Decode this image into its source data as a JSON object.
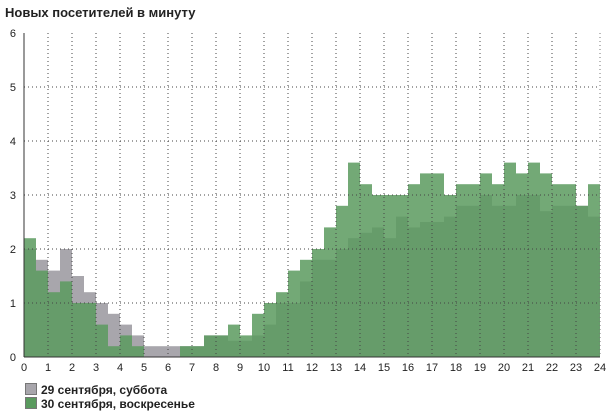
{
  "chart_data": {
    "type": "bar",
    "title": "Новых посетителей в минуту",
    "xlabel": "",
    "ylabel": "",
    "xlim": [
      0,
      24
    ],
    "ylim": [
      0,
      6
    ],
    "x_ticks": [
      "0",
      "1",
      "2",
      "3",
      "4",
      "5",
      "6",
      "7",
      "8",
      "9",
      "10",
      "11",
      "12",
      "13",
      "14",
      "15",
      "16",
      "17",
      "18",
      "19",
      "20",
      "21",
      "22",
      "23",
      "24"
    ],
    "y_ticks": [
      "0",
      "1",
      "2",
      "3",
      "4",
      "5",
      "6"
    ],
    "grid": "dotted",
    "legend_position": "bottom-left",
    "series": [
      {
        "name": "29 сентября, суббота",
        "color": "#a8a6ac",
        "values": [
          2.0,
          1.8,
          1.6,
          2.0,
          1.5,
          1.2,
          1.0,
          0.8,
          0.6,
          0.4,
          0.2,
          0.2,
          0.2,
          0.2,
          0.2,
          0.4,
          0.4,
          0.3,
          0.3,
          0.4,
          0.6,
          1.0,
          1.0,
          1.4,
          1.8,
          1.8,
          2.0,
          2.2,
          2.3,
          2.4,
          2.2,
          2.6,
          2.4,
          2.5,
          2.5,
          2.6,
          2.8,
          2.8,
          3.0,
          2.8,
          2.8,
          3.0,
          3.0,
          2.7,
          2.8,
          2.8,
          2.8,
          2.6
        ]
      },
      {
        "name": "30 сентября, воскресенье",
        "color": "#5a9a5e",
        "values": [
          2.2,
          1.6,
          1.2,
          1.4,
          1.0,
          1.0,
          0.6,
          0.2,
          0.4,
          0.2,
          0.0,
          0.0,
          0.0,
          0.2,
          0.2,
          0.4,
          0.4,
          0.6,
          0.4,
          0.8,
          1.0,
          1.2,
          1.6,
          1.8,
          2.0,
          2.4,
          2.8,
          3.6,
          3.2,
          3.0,
          3.0,
          3.0,
          3.2,
          3.4,
          3.4,
          3.0,
          3.2,
          3.2,
          3.4,
          3.2,
          3.6,
          3.4,
          3.6,
          3.4,
          3.2,
          3.2,
          2.8,
          3.2
        ]
      }
    ]
  }
}
